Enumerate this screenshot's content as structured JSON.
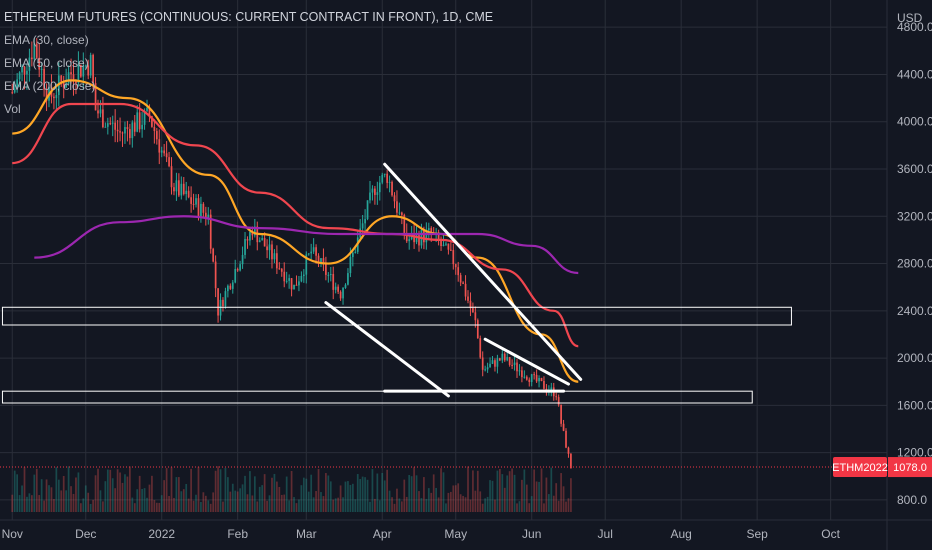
{
  "legend": {
    "title": "ETHEREUM FUTURES (CONTINUOUS: CURRENT CONTRACT IN FRONT), 1D, CME",
    "indicators": [
      "EMA (30, close)",
      "EMA (50, close)",
      "EMA (200, close)",
      "Vol"
    ]
  },
  "price_badge": {
    "symbol": "ETHM2022",
    "price": "1078.0",
    "color": "#f23645"
  },
  "colors": {
    "up": "#26a69a",
    "down": "#ef5350",
    "ema30": "#ffa726",
    "ema50": "#f0464f",
    "ema200": "#9c27b0",
    "background": "#131722",
    "grid": "#2a2e39",
    "annotation": "#ffffff"
  },
  "chart_data": {
    "type": "line",
    "title": "ETHEREUM FUTURES (CONTINUOUS: CURRENT CONTRACT IN FRONT), 1D, CME",
    "currency": "USD",
    "y_ticks": [
      800,
      1200,
      1600,
      2000,
      2400,
      2800,
      3200,
      3600,
      4000,
      4400,
      4800
    ],
    "y_tick_labels": [
      "800.0",
      "1200.0",
      "1600.0",
      "2000.0",
      "2400.0",
      "2800.0",
      "3200.0",
      "3600.0",
      "4000.0",
      "4400.0",
      "4800.0"
    ],
    "x_tick_labels": [
      "Nov",
      "Dec",
      "2022",
      "Feb",
      "Mar",
      "Apr",
      "May",
      "Jun",
      "Jul",
      "Aug",
      "Sep",
      "Oct"
    ],
    "x_tick_dates": [
      "2021-11-01",
      "2021-12-01",
      "2022-01-01",
      "2022-02-01",
      "2022-03-01",
      "2022-04-01",
      "2022-05-01",
      "2022-06-01",
      "2022-07-01",
      "2022-08-01",
      "2022-09-01",
      "2022-10-01"
    ],
    "price_anchors": [
      {
        "date": "2021-11-01",
        "price": 4250
      },
      {
        "date": "2021-11-10",
        "price": 4650
      },
      {
        "date": "2021-11-16",
        "price": 4200
      },
      {
        "date": "2021-11-24",
        "price": 4400
      },
      {
        "date": "2021-12-03",
        "price": 4500
      },
      {
        "date": "2021-12-05",
        "price": 4100
      },
      {
        "date": "2021-12-15",
        "price": 3900
      },
      {
        "date": "2021-12-27",
        "price": 4050
      },
      {
        "date": "2022-01-06",
        "price": 3450
      },
      {
        "date": "2022-01-20",
        "price": 3200
      },
      {
        "date": "2022-01-24",
        "price": 2400
      },
      {
        "date": "2022-02-07",
        "price": 3100
      },
      {
        "date": "2022-02-24",
        "price": 2600
      },
      {
        "date": "2022-03-03",
        "price": 2900
      },
      {
        "date": "2022-03-15",
        "price": 2550
      },
      {
        "date": "2022-03-29",
        "price": 3450
      },
      {
        "date": "2022-04-03",
        "price": 3550
      },
      {
        "date": "2022-04-11",
        "price": 3000
      },
      {
        "date": "2022-04-21",
        "price": 3050
      },
      {
        "date": "2022-05-01",
        "price": 2800
      },
      {
        "date": "2022-05-09",
        "price": 2300
      },
      {
        "date": "2022-05-12",
        "price": 1900
      },
      {
        "date": "2022-05-20",
        "price": 2000
      },
      {
        "date": "2022-06-03",
        "price": 1800
      },
      {
        "date": "2022-06-11",
        "price": 1700
      },
      {
        "date": "2022-06-13",
        "price": 1450
      },
      {
        "date": "2022-06-17",
        "price": 1078
      }
    ],
    "series": [
      {
        "name": "EMA (30, close)",
        "color": "#ffa726",
        "points": [
          [
            "2021-11-01",
            3900
          ],
          [
            "2021-11-25",
            4350
          ],
          [
            "2021-12-18",
            4200
          ],
          [
            "2022-01-20",
            3550
          ],
          [
            "2022-02-10",
            3050
          ],
          [
            "2022-03-10",
            2800
          ],
          [
            "2022-04-05",
            3200
          ],
          [
            "2022-04-25",
            3050
          ],
          [
            "2022-05-10",
            2850
          ],
          [
            "2022-06-05",
            2200
          ],
          [
            "2022-06-20",
            1800
          ]
        ]
      },
      {
        "name": "EMA (50, close)",
        "color": "#f0464f",
        "points": [
          [
            "2021-11-01",
            3650
          ],
          [
            "2021-11-25",
            4150
          ],
          [
            "2021-12-15",
            4150
          ],
          [
            "2022-01-15",
            3800
          ],
          [
            "2022-02-10",
            3400
          ],
          [
            "2022-03-10",
            3100
          ],
          [
            "2022-04-05",
            3050
          ],
          [
            "2022-04-25",
            3000
          ],
          [
            "2022-05-20",
            2750
          ],
          [
            "2022-06-10",
            2400
          ],
          [
            "2022-06-20",
            2100
          ]
        ]
      },
      {
        "name": "EMA (200, close)",
        "color": "#9c27b0",
        "points": [
          [
            "2021-11-10",
            2850
          ],
          [
            "2021-12-15",
            3150
          ],
          [
            "2022-01-10",
            3200
          ],
          [
            "2022-02-10",
            3100
          ],
          [
            "2022-03-15",
            3050
          ],
          [
            "2022-04-15",
            3050
          ],
          [
            "2022-05-10",
            3050
          ],
          [
            "2022-06-01",
            2950
          ],
          [
            "2022-06-20",
            2720
          ]
        ]
      }
    ],
    "annotations": {
      "horizontal_zones": [
        {
          "from_date": "2021-10-28",
          "to_date": "2022-09-15",
          "low": 2280,
          "high": 2430
        },
        {
          "from_date": "2021-10-28",
          "to_date": "2022-08-30",
          "low": 1620,
          "high": 1720
        }
      ],
      "trend_lines": [
        [
          [
            "2022-03-09",
            2470
          ],
          [
            "2022-04-28",
            1680
          ]
        ],
        [
          [
            "2022-04-02",
            3640
          ],
          [
            "2022-06-21",
            1820
          ]
        ],
        [
          [
            "2022-05-13",
            2160
          ],
          [
            "2022-06-16",
            1780
          ]
        ],
        [
          [
            "2022-04-02",
            1720
          ],
          [
            "2022-06-14",
            1720
          ]
        ]
      ]
    },
    "volume_y_range": [
      0,
      100
    ],
    "x_range": [
      "2021-10-27",
      "2022-10-24"
    ],
    "y_range": [
      630,
      5030
    ],
    "grid": true
  }
}
